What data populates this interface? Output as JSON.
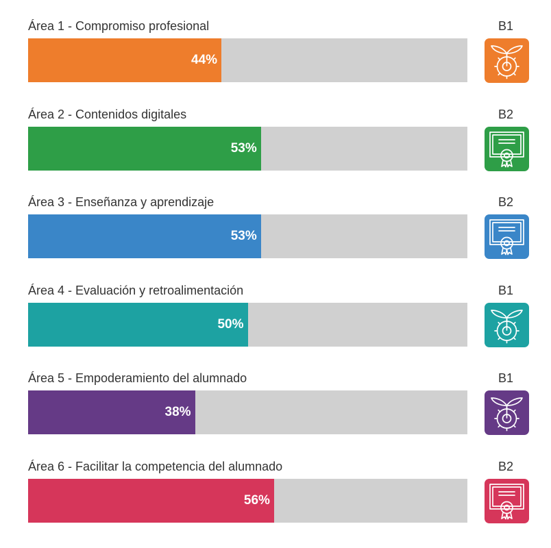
{
  "chart_data": {
    "type": "bar",
    "orientation": "horizontal",
    "xlim": [
      0,
      100
    ],
    "unit": "%",
    "categories": [
      "Área 1 - Compromiso profesional",
      "Área 2 - Contenidos digitales",
      "Área 3 - Enseñanza y aprendizaje",
      "Área 4 - Evaluación y retroalimentación",
      "Área 5 - Empoderamiento del alumnado",
      "Área 6 - Facilitar la competencia del alumnado"
    ],
    "values": [
      44,
      53,
      53,
      50,
      38,
      56
    ],
    "value_labels": [
      "44%",
      "53%",
      "53%",
      "50%",
      "38%",
      "56%"
    ],
    "levels": [
      "B1",
      "B2",
      "B2",
      "B1",
      "B1",
      "B2"
    ],
    "level_icons": [
      "sprout-gear-icon",
      "certificate-icon",
      "certificate-icon",
      "sprout-gear-icon",
      "sprout-gear-icon",
      "certificate-icon"
    ],
    "colors": [
      "#ee7d2c",
      "#2e9e47",
      "#3a86c8",
      "#1da2a2",
      "#653a86",
      "#d6365a"
    ],
    "track_color": "#d0d0d0"
  }
}
